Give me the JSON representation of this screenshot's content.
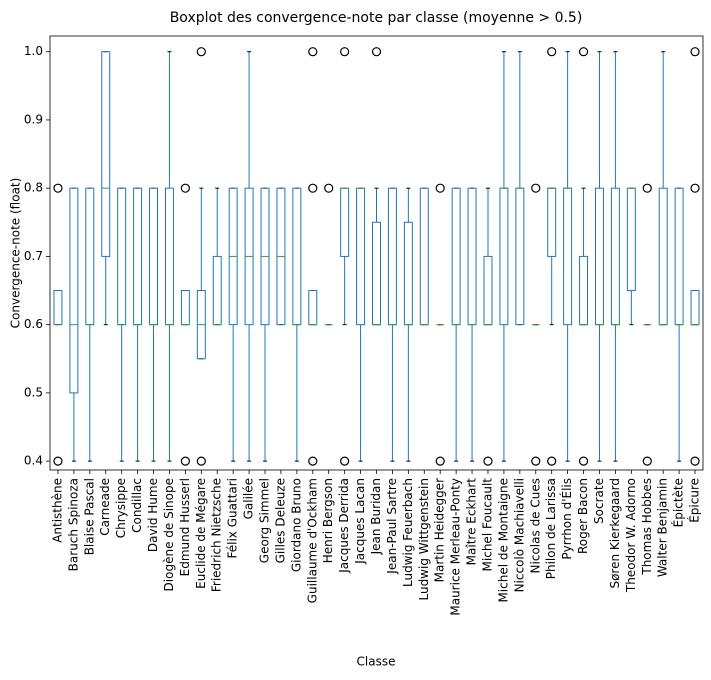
{
  "chart_data": {
    "type": "box",
    "title": "Boxplot des convergence-note par classe (moyenne > 0.5)",
    "xlabel": "Classe",
    "ylabel": "Convergence-note (float)",
    "box_color": "#1f77b4",
    "median_color": "#2ca02c",
    "ylim": [
      0.387,
      1.023
    ],
    "yticks": [
      0.4,
      0.5,
      0.6,
      0.7,
      0.8,
      0.9,
      {
        "value": 1,
        "label": "1.0"
      }
    ],
    "categories": [
      "Antisthène",
      "Baruch Spinoza",
      "Blaise Pascal",
      "Carneade",
      "Chrysippe",
      "Condillac",
      "David Hume",
      "Diogène de Sinope",
      "Edmund Husserl",
      "Euclide de Mégare",
      "Friedrich Nietzsche",
      "Félix Guattari",
      "Galilée",
      "Georg Simmel",
      "Gilles Deleuze",
      "Giordano Bruno",
      "Guillaume d'Ockham",
      "Henri Bergson",
      "Jacques Derrida",
      "Jacques Lacan",
      "Jean Buridan",
      "Jean-Paul Sartre",
      "Ludwig Feuerbach",
      "Ludwig Wittgenstein",
      "Martin Heidegger",
      "Maurice Merleau-Ponty",
      "Maître Eckhart",
      "Michel Foucault",
      "Michel de Montaigne",
      "Niccolò Machiavelli",
      "Nicolas de Cues",
      "Philon de Larissa",
      "Pyrrhon d'Élis",
      "Roger Bacon",
      "Socrate",
      "Søren Kierkegaard",
      "Theodor W. Adorno",
      "Thomas Hobbes",
      "Walter Benjamin",
      "Épictète",
      "Épicure"
    ],
    "boxes": [
      {
        "whislo": 0.6,
        "q1": 0.6,
        "med": 0.6,
        "q3": 0.65,
        "whishi": 0.65,
        "fliers": [
          0.8,
          0.4
        ]
      },
      {
        "whislo": 0.4,
        "q1": 0.5,
        "med": 0.6,
        "q3": 0.8,
        "whishi": 0.8,
        "fliers": []
      },
      {
        "whislo": 0.4,
        "q1": 0.6,
        "med": 0.6,
        "q3": 0.8,
        "whishi": 0.8,
        "fliers": []
      },
      {
        "whislo": 0.6,
        "q1": 0.7,
        "med": 0.8,
        "q3": 1.0,
        "whishi": 1.0,
        "fliers": []
      },
      {
        "whislo": 0.4,
        "q1": 0.6,
        "med": 0.6,
        "q3": 0.8,
        "whishi": 0.8,
        "fliers": []
      },
      {
        "whislo": 0.4,
        "q1": 0.6,
        "med": 0.6,
        "q3": 0.8,
        "whishi": 0.8,
        "fliers": []
      },
      {
        "whislo": 0.4,
        "q1": 0.6,
        "med": 0.6,
        "q3": 0.8,
        "whishi": 0.8,
        "fliers": []
      },
      {
        "whislo": 0.4,
        "q1": 0.6,
        "med": 0.6,
        "q3": 0.8,
        "whishi": 1.0,
        "fliers": []
      },
      {
        "whislo": 0.6,
        "q1": 0.6,
        "med": 0.6,
        "q3": 0.65,
        "whishi": 0.65,
        "fliers": [
          0.8,
          0.4
        ]
      },
      {
        "whislo": 0.55,
        "q1": 0.55,
        "med": 0.6,
        "q3": 0.65,
        "whishi": 0.8,
        "fliers": [
          1.0,
          0.4
        ]
      },
      {
        "whislo": 0.6,
        "q1": 0.6,
        "med": 0.6,
        "q3": 0.7,
        "whishi": 0.8,
        "fliers": []
      },
      {
        "whislo": 0.4,
        "q1": 0.6,
        "med": 0.7,
        "q3": 0.8,
        "whishi": 0.8,
        "fliers": []
      },
      {
        "whislo": 0.4,
        "q1": 0.6,
        "med": 0.7,
        "q3": 0.8,
        "whishi": 1.0,
        "fliers": []
      },
      {
        "whislo": 0.4,
        "q1": 0.6,
        "med": 0.7,
        "q3": 0.8,
        "whishi": 0.8,
        "fliers": []
      },
      {
        "whislo": 0.6,
        "q1": 0.6,
        "med": 0.7,
        "q3": 0.8,
        "whishi": 0.8,
        "fliers": []
      },
      {
        "whislo": 0.4,
        "q1": 0.6,
        "med": 0.6,
        "q3": 0.8,
        "whishi": 0.8,
        "fliers": []
      },
      {
        "whislo": 0.6,
        "q1": 0.6,
        "med": 0.6,
        "q3": 0.65,
        "whishi": 0.65,
        "fliers": [
          1.0,
          0.8,
          0.4
        ]
      },
      {
        "whislo": 0.6,
        "q1": 0.6,
        "med": 0.6,
        "q3": 0.6,
        "whishi": 0.6,
        "fliers": [
          0.8
        ]
      },
      {
        "whislo": 0.6,
        "q1": 0.7,
        "med": 0.8,
        "q3": 0.8,
        "whishi": 0.8,
        "fliers": [
          1.0,
          0.4
        ]
      },
      {
        "whislo": 0.4,
        "q1": 0.6,
        "med": 0.8,
        "q3": 0.8,
        "whishi": 0.8,
        "fliers": []
      },
      {
        "whislo": 0.6,
        "q1": 0.6,
        "med": 0.6,
        "q3": 0.75,
        "whishi": 0.8,
        "fliers": [
          1.0
        ]
      },
      {
        "whislo": 0.4,
        "q1": 0.6,
        "med": 0.6,
        "q3": 0.8,
        "whishi": 0.8,
        "fliers": []
      },
      {
        "whislo": 0.4,
        "q1": 0.6,
        "med": 0.6,
        "q3": 0.75,
        "whishi": 0.8,
        "fliers": []
      },
      {
        "whislo": 0.6,
        "q1": 0.6,
        "med": 0.6,
        "q3": 0.8,
        "whishi": 0.8,
        "fliers": []
      },
      {
        "whislo": 0.6,
        "q1": 0.6,
        "med": 0.6,
        "q3": 0.6,
        "whishi": 0.6,
        "fliers": [
          0.8,
          0.4
        ]
      },
      {
        "whislo": 0.4,
        "q1": 0.6,
        "med": 0.6,
        "q3": 0.8,
        "whishi": 0.8,
        "fliers": []
      },
      {
        "whislo": 0.4,
        "q1": 0.6,
        "med": 0.6,
        "q3": 0.8,
        "whishi": 0.8,
        "fliers": []
      },
      {
        "whislo": 0.6,
        "q1": 0.6,
        "med": 0.6,
        "q3": 0.7,
        "whishi": 0.8,
        "fliers": [
          0.4
        ]
      },
      {
        "whislo": 0.4,
        "q1": 0.6,
        "med": 0.8,
        "q3": 0.8,
        "whishi": 1.0,
        "fliers": []
      },
      {
        "whislo": 0.6,
        "q1": 0.6,
        "med": 0.8,
        "q3": 0.8,
        "whishi": 1.0,
        "fliers": []
      },
      {
        "whislo": 0.6,
        "q1": 0.6,
        "med": 0.6,
        "q3": 0.6,
        "whishi": 0.6,
        "fliers": [
          0.8,
          0.4
        ]
      },
      {
        "whislo": 0.6,
        "q1": 0.7,
        "med": 0.8,
        "q3": 0.8,
        "whishi": 0.8,
        "fliers": [
          1.0,
          0.4
        ]
      },
      {
        "whislo": 0.4,
        "q1": 0.6,
        "med": 0.8,
        "q3": 0.8,
        "whishi": 1.0,
        "fliers": []
      },
      {
        "whislo": 0.6,
        "q1": 0.6,
        "med": 0.6,
        "q3": 0.7,
        "whishi": 0.8,
        "fliers": [
          1.0,
          0.4
        ]
      },
      {
        "whislo": 0.4,
        "q1": 0.6,
        "med": 0.6,
        "q3": 0.8,
        "whishi": 1.0,
        "fliers": []
      },
      {
        "whislo": 0.4,
        "q1": 0.6,
        "med": 0.6,
        "q3": 0.8,
        "whishi": 1.0,
        "fliers": []
      },
      {
        "whislo": 0.6,
        "q1": 0.65,
        "med": 0.8,
        "q3": 0.8,
        "whishi": 0.8,
        "fliers": []
      },
      {
        "whislo": 0.6,
        "q1": 0.6,
        "med": 0.6,
        "q3": 0.6,
        "whishi": 0.6,
        "fliers": [
          0.8,
          0.4
        ]
      },
      {
        "whislo": 0.6,
        "q1": 0.6,
        "med": 0.6,
        "q3": 0.8,
        "whishi": 1.0,
        "fliers": []
      },
      {
        "whislo": 0.4,
        "q1": 0.6,
        "med": 0.6,
        "q3": 0.8,
        "whishi": 0.8,
        "fliers": []
      },
      {
        "whislo": 0.6,
        "q1": 0.6,
        "med": 0.6,
        "q3": 0.65,
        "whishi": 0.65,
        "fliers": [
          1.0,
          0.8,
          0.4
        ]
      }
    ]
  }
}
